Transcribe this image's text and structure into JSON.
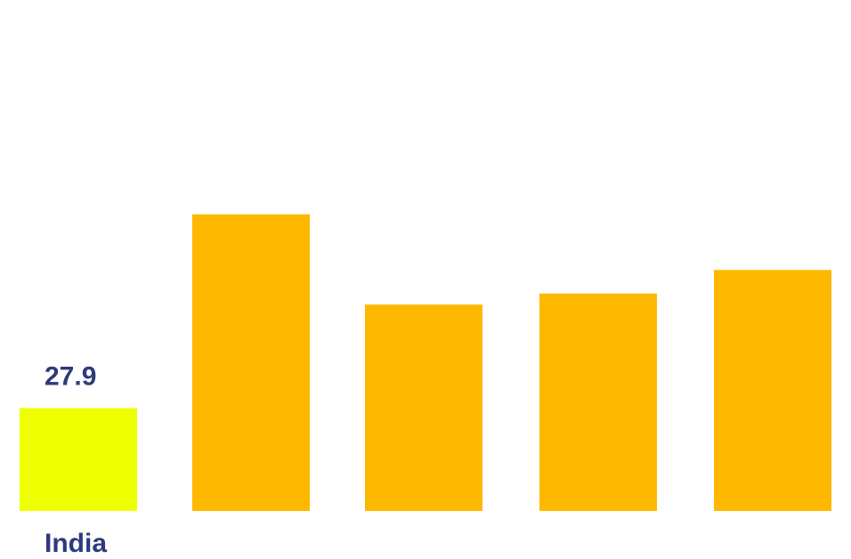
{
  "chart_data": {
    "type": "bar",
    "categories": [
      "India",
      "",
      "",
      "",
      ""
    ],
    "values": [
      27.9,
      80.5,
      56.0,
      59.0,
      65.4
    ],
    "highlight_index": 0,
    "data_labels": [
      "27.9",
      "",
      "",
      "",
      ""
    ],
    "title": "",
    "xlabel": "",
    "ylabel": "",
    "ylim": [
      0,
      122
    ],
    "grid": false,
    "legend": "none"
  },
  "colors": {
    "background": "#ffffff",
    "bar": "#FFB800",
    "highlight_bar": "#EEFF00",
    "label_text": "#2E3A7C"
  }
}
